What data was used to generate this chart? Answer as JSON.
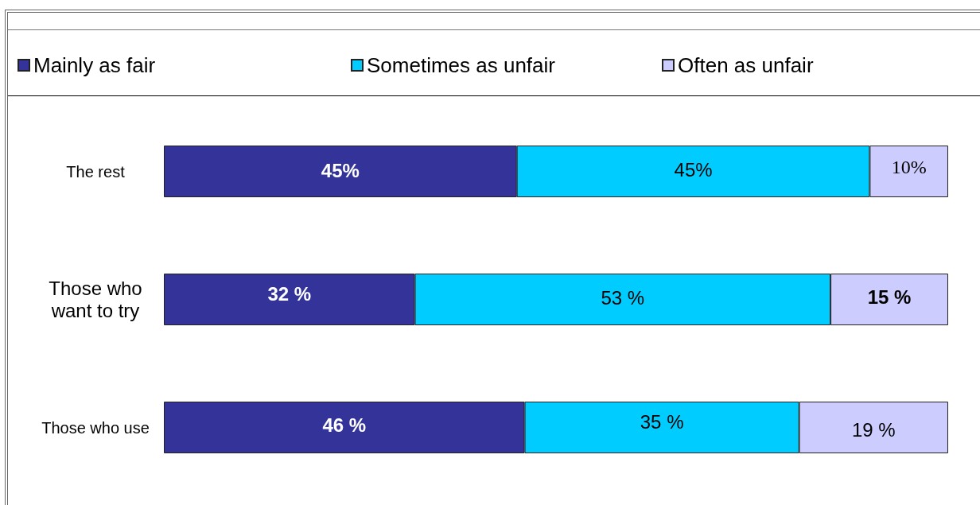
{
  "chart_data": {
    "type": "bar",
    "orientation": "horizontal",
    "stacked": true,
    "categories": [
      "The rest",
      "Those who want to try",
      "Those who use"
    ],
    "series": [
      {
        "name": "Mainly as fair",
        "color": "#333399",
        "values": [
          45,
          32,
          46
        ],
        "value_labels": [
          "45%",
          "32 %",
          "46 %"
        ]
      },
      {
        "name": "Sometimes as unfair",
        "color": "#00ccff",
        "values": [
          45,
          53,
          35
        ],
        "value_labels": [
          "45%",
          "53 %",
          "35 %"
        ]
      },
      {
        "name": "Often as unfair",
        "color": "#ccccff",
        "values": [
          10,
          15,
          19
        ],
        "value_labels": [
          "10%",
          "15 %",
          "19 %"
        ]
      }
    ],
    "legend": "top"
  }
}
